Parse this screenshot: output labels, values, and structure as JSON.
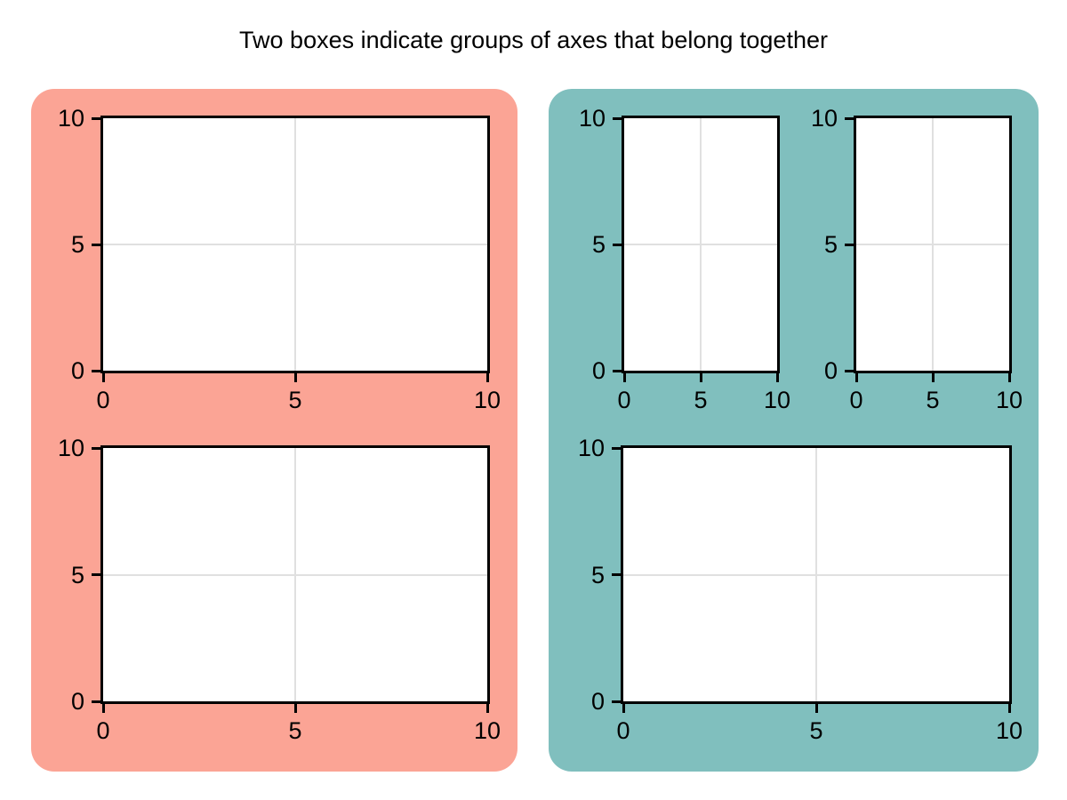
{
  "figure": {
    "title": "Two boxes indicate groups of axes that belong together",
    "background": "#ffffff",
    "text_color": "#000000"
  },
  "style": {
    "spine_color": "#000000",
    "grid_color": "#e0e0e0",
    "plot_background": "#ffffff",
    "tick_length": 10,
    "tick_thickness": 3,
    "grid_thickness": 2,
    "tick_font_size": 27
  },
  "groups": [
    {
      "id": "salmon-group",
      "color": "#fba495"
    },
    {
      "id": "teal-group",
      "color": "#80bfbe"
    }
  ],
  "chart_data": [
    {
      "id": "salmon-top",
      "group": "salmon-group",
      "type": "line",
      "series": [],
      "title": "",
      "xlabel": "",
      "ylabel": "",
      "xlim": [
        0,
        10
      ],
      "ylim": [
        0,
        10
      ],
      "xticks": [
        0,
        5,
        10
      ],
      "yticks": [
        0,
        5,
        10
      ],
      "grid": true,
      "legend": false
    },
    {
      "id": "salmon-bottom",
      "group": "salmon-group",
      "type": "line",
      "series": [],
      "title": "",
      "xlabel": "",
      "ylabel": "",
      "xlim": [
        0,
        10
      ],
      "ylim": [
        0,
        10
      ],
      "xticks": [
        0,
        5,
        10
      ],
      "yticks": [
        0,
        5,
        10
      ],
      "grid": true,
      "legend": false
    },
    {
      "id": "teal-top-left",
      "group": "teal-group",
      "type": "line",
      "series": [],
      "title": "",
      "xlabel": "",
      "ylabel": "",
      "xlim": [
        0,
        10
      ],
      "ylim": [
        0,
        10
      ],
      "xticks": [
        0,
        5,
        10
      ],
      "yticks": [
        0,
        5,
        10
      ],
      "grid": true,
      "legend": false
    },
    {
      "id": "teal-top-right",
      "group": "teal-group",
      "type": "line",
      "series": [],
      "title": "",
      "xlabel": "",
      "ylabel": "",
      "xlim": [
        0,
        10
      ],
      "ylim": [
        0,
        10
      ],
      "xticks": [
        0,
        5,
        10
      ],
      "yticks": [
        0,
        5,
        10
      ],
      "grid": true,
      "legend": false
    },
    {
      "id": "teal-bottom",
      "group": "teal-group",
      "type": "line",
      "series": [],
      "title": "",
      "xlabel": "",
      "ylabel": "",
      "xlim": [
        0,
        10
      ],
      "ylim": [
        0,
        10
      ],
      "xticks": [
        0,
        5,
        10
      ],
      "yticks": [
        0,
        5,
        10
      ],
      "grid": true,
      "legend": false
    }
  ]
}
